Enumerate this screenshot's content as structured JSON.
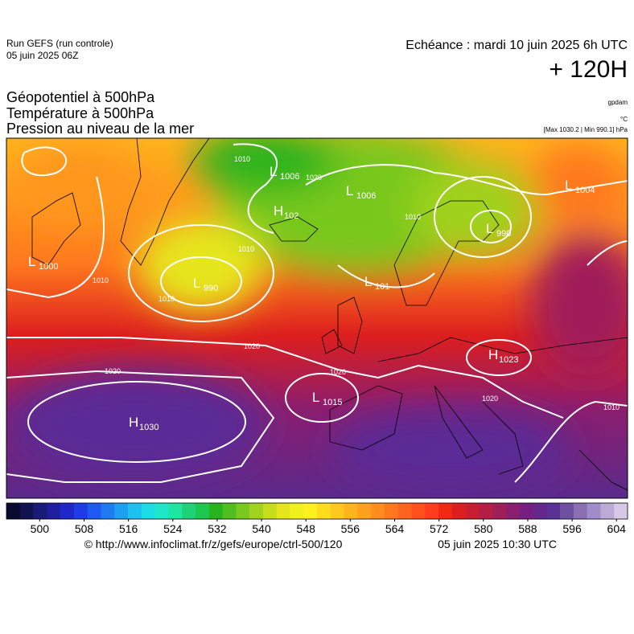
{
  "header": {
    "run": "Run GEFS (run controle)",
    "run_date": "05 juin 2025 06Z",
    "valid": "Echéance : mardi 10 juin 2025 6h UTC",
    "lead": "+ 120H"
  },
  "fields": [
    "Géopotentiel à 500hPa",
    "Température à 500hPa",
    "Pression au niveau de la mer"
  ],
  "units": {
    "geopotential": "gpdam",
    "temperature": "°C",
    "pressure_range": "[Max 1030.2 | Min 990.1] hPa"
  },
  "centers": [
    {
      "type": "L",
      "value": "1006"
    },
    {
      "type": "H",
      "value": "102"
    },
    {
      "type": "L",
      "value": "1006"
    },
    {
      "type": "L",
      "value": "1004"
    },
    {
      "type": "L",
      "value": "990"
    },
    {
      "type": "L",
      "value": "1000"
    },
    {
      "type": "L",
      "value": "990"
    },
    {
      "type": "L",
      "value": "101"
    },
    {
      "type": "H",
      "value": "1023"
    },
    {
      "type": "L",
      "value": "1015"
    },
    {
      "type": "H",
      "value": "1030"
    }
  ],
  "isobar_labels": [
    "1010",
    "1020",
    "1010",
    "1010",
    "1010",
    "1010",
    "1020",
    "1020",
    "1020",
    "1020",
    "1010"
  ],
  "colorbar": {
    "range": [
      494,
      606
    ],
    "ticks": [
      500,
      508,
      516,
      524,
      532,
      540,
      548,
      556,
      564,
      572,
      580,
      588,
      596,
      604
    ],
    "colors": [
      "#0a0a30",
      "#121250",
      "#1a1a78",
      "#1e1ea0",
      "#1e28c8",
      "#1e3ce6",
      "#1e5af0",
      "#1e7cf0",
      "#1ea0f0",
      "#1ec0f0",
      "#1edce6",
      "#1ee6c8",
      "#1ee6a0",
      "#1ed278",
      "#1ec850",
      "#28b41e",
      "#50be1e",
      "#78c81e",
      "#a0d21e",
      "#c8dc1e",
      "#e6e61e",
      "#f0f01e",
      "#fff01e",
      "#ffdc1e",
      "#ffc81e",
      "#ffb41e",
      "#ffa01e",
      "#ff8c1e",
      "#ff781e",
      "#ff641e",
      "#ff501e",
      "#ff3c1e",
      "#f02814",
      "#dc1e1e",
      "#c81e32",
      "#b41e46",
      "#a01e5a",
      "#8c1e6e",
      "#781e82",
      "#64288c",
      "#5a3296",
      "#6e50a0",
      "#8c6eb4",
      "#a08cc8",
      "#beaad7",
      "#d7c8e6"
    ]
  },
  "footer": {
    "url": "© http://www.infoclimat.fr/z/gefs/europe/ctrl-500/120",
    "issued": "05 juin 2025 10:30 UTC"
  }
}
